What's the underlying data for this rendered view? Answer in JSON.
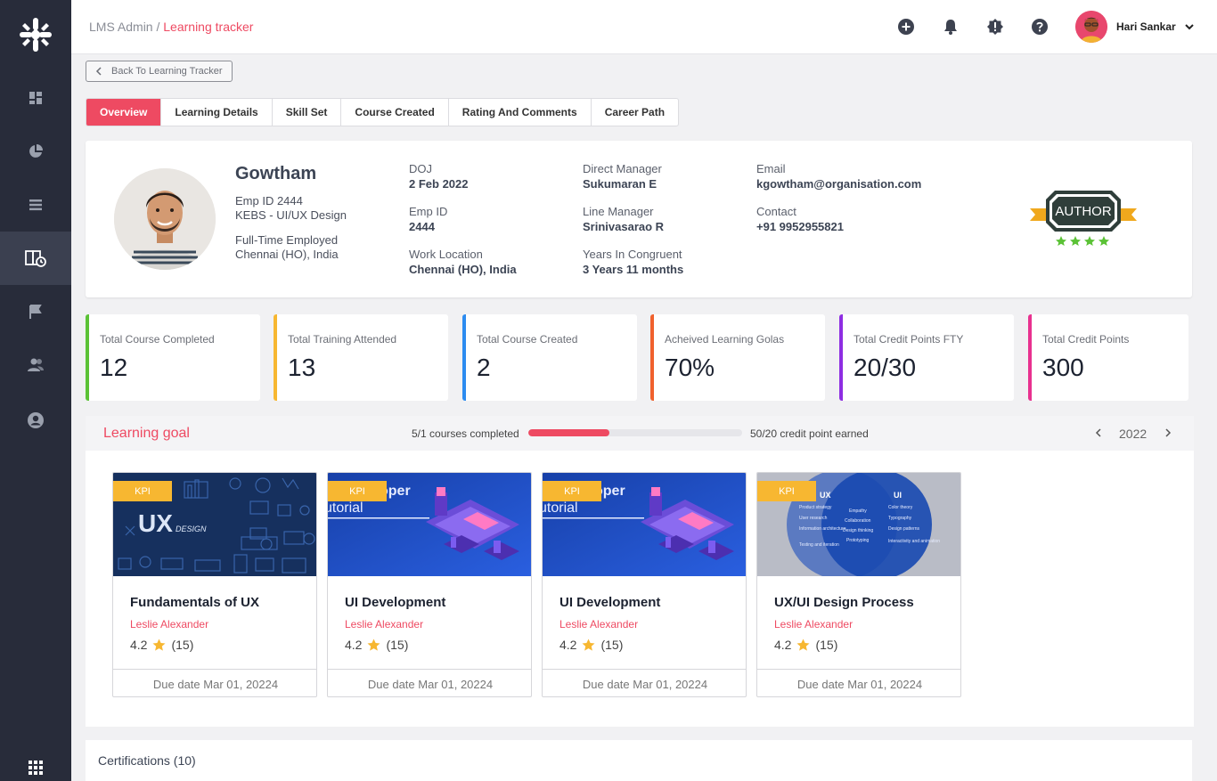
{
  "sidebar": {
    "logo": "asterisk-logo-icon",
    "items": [
      {
        "icon": "dashboard-icon",
        "active": false
      },
      {
        "icon": "pie-chart-icon",
        "active": false
      },
      {
        "icon": "list-icon",
        "active": false
      },
      {
        "icon": "learning-tracker-icon",
        "active": true
      },
      {
        "icon": "flag-icon",
        "active": false
      },
      {
        "icon": "users-icon",
        "active": false
      },
      {
        "icon": "account-icon",
        "active": false
      }
    ],
    "bottom_icon": "apps-grid-icon"
  },
  "header": {
    "breadcrumb_root": "LMS Admin /",
    "breadcrumb_current": "Learning tracker",
    "icons": [
      "add-icon",
      "bell-icon",
      "alert-icon",
      "help-icon"
    ],
    "user_name": "Hari Sankar"
  },
  "back_button": "Back To Learning Tracker",
  "tabs": [
    "Overview",
    "Learning Details",
    "Skill Set",
    "Course Created",
    "Rating And Comments",
    "Career Path"
  ],
  "profile": {
    "name": "Gowtham",
    "emp_id": "Emp ID 2444",
    "department": "KEBS - UI/UX Design",
    "employment": "Full-Time Employed",
    "location": "Chennai (HO), India",
    "fields": [
      {
        "label": "DOJ",
        "value": "2 Feb 2022"
      },
      {
        "label": "Emp ID",
        "value": "2444"
      },
      {
        "label": "Work Location",
        "value": "Chennai (HO), India"
      },
      {
        "label": "Direct Manager",
        "value": "Sukumaran E"
      },
      {
        "label": "Line Manager",
        "value": "Srinivasarao R"
      },
      {
        "label": "Years In Congruent",
        "value": "3 Years 11 months"
      },
      {
        "label": "Email",
        "value": "kgowtham@organisation.com"
      },
      {
        "label": "Contact",
        "value": "+91 9952955821"
      }
    ],
    "badge": "AUTHOR",
    "badge_stars": 4
  },
  "stats": [
    {
      "label": "Total Course Completed",
      "value": "12",
      "color": "#5bc236"
    },
    {
      "label": "Total Training Attended",
      "value": "13",
      "color": "#f7b731"
    },
    {
      "label": "Total Course Created",
      "value": "2",
      "color": "#2d8cf0"
    },
    {
      "label": "Acheived Learning Golas",
      "value": "70%",
      "color": "#f0612d"
    },
    {
      "label": "Total Credit Points FTY",
      "value": "20/30",
      "color": "#8e2de2"
    },
    {
      "label": "Total Credit Points",
      "value": "300",
      "color": "#e8318f"
    }
  ],
  "learning_goal": {
    "title": "Learning goal",
    "courses_completed": "5/1 courses completed",
    "progress": 0.38,
    "credits": "50/20 credit point earned",
    "year": "2022"
  },
  "courses": [
    {
      "kpi": "KPI",
      "title": "Fundamentals of UX",
      "author": "Leslie Alexander",
      "rating": "4.2",
      "reviews": "(15)",
      "due": "Due date Mar 01, 20224",
      "image": "ux-design",
      "image_text": "UX",
      "image_subtext": "DESIGN"
    },
    {
      "kpi": "KPI",
      "title": "UI Development",
      "author": "Leslie Alexander",
      "rating": "4.2",
      "reviews": "(15)",
      "due": "Due date Mar 01, 20224",
      "image": "developer-tutorial",
      "image_text": "oper",
      "image_subtext": "utorial"
    },
    {
      "kpi": "KPI",
      "title": "UI Development",
      "author": "Leslie Alexander",
      "rating": "4.2",
      "reviews": "(15)",
      "due": "Due date Mar 01, 20224",
      "image": "developer-tutorial",
      "image_text": "oper",
      "image_subtext": "utorial"
    },
    {
      "kpi": "KPI",
      "title": "UX/UI Design Process",
      "author": "Leslie Alexander",
      "rating": "4.2",
      "reviews": "(15)",
      "due": "Due date Mar 01, 20224",
      "image": "venn-diagram",
      "venn": {
        "left": "UX",
        "right": "UI",
        "left_items": [
          "Product strategy",
          "User research",
          "Information architecture",
          "Testing and iteration"
        ],
        "mid_items": [
          "Empathy",
          "Collaboration",
          "Design thinking",
          "Prototyping"
        ],
        "right_items": [
          "Color theory",
          "Typography",
          "Design patterns",
          "Interactivity and animation"
        ]
      }
    }
  ],
  "certifications": "Certifications (10)"
}
